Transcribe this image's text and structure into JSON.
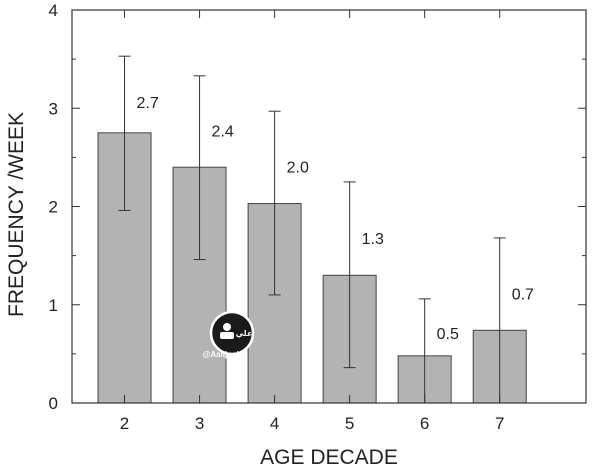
{
  "chart_data": {
    "type": "bar",
    "title": "",
    "xlabel": "AGE DECADE",
    "ylabel": "FREQUENCY /WEEK",
    "categories": [
      "2",
      "3",
      "4",
      "5",
      "6",
      "7"
    ],
    "values": [
      2.75,
      2.4,
      2.03,
      1.3,
      0.48,
      0.74
    ],
    "value_labels": [
      "2.7",
      "2.4",
      "2.0",
      "1.3",
      "0.5",
      "0.7"
    ],
    "error_upper": [
      3.53,
      3.33,
      2.97,
      2.25,
      1.06,
      1.68
    ],
    "error_lower": [
      1.96,
      1.46,
      1.1,
      0.36,
      0.0,
      0.0
    ],
    "ylim": [
      0,
      4
    ],
    "yticks": [
      "0",
      "1",
      "2",
      "3",
      "4"
    ],
    "grid": false,
    "bar_color": "#b3b3b3",
    "edge_color": "#444444"
  },
  "watermark": {
    "text": "@Aalijnab",
    "logo_text": "علي"
  }
}
